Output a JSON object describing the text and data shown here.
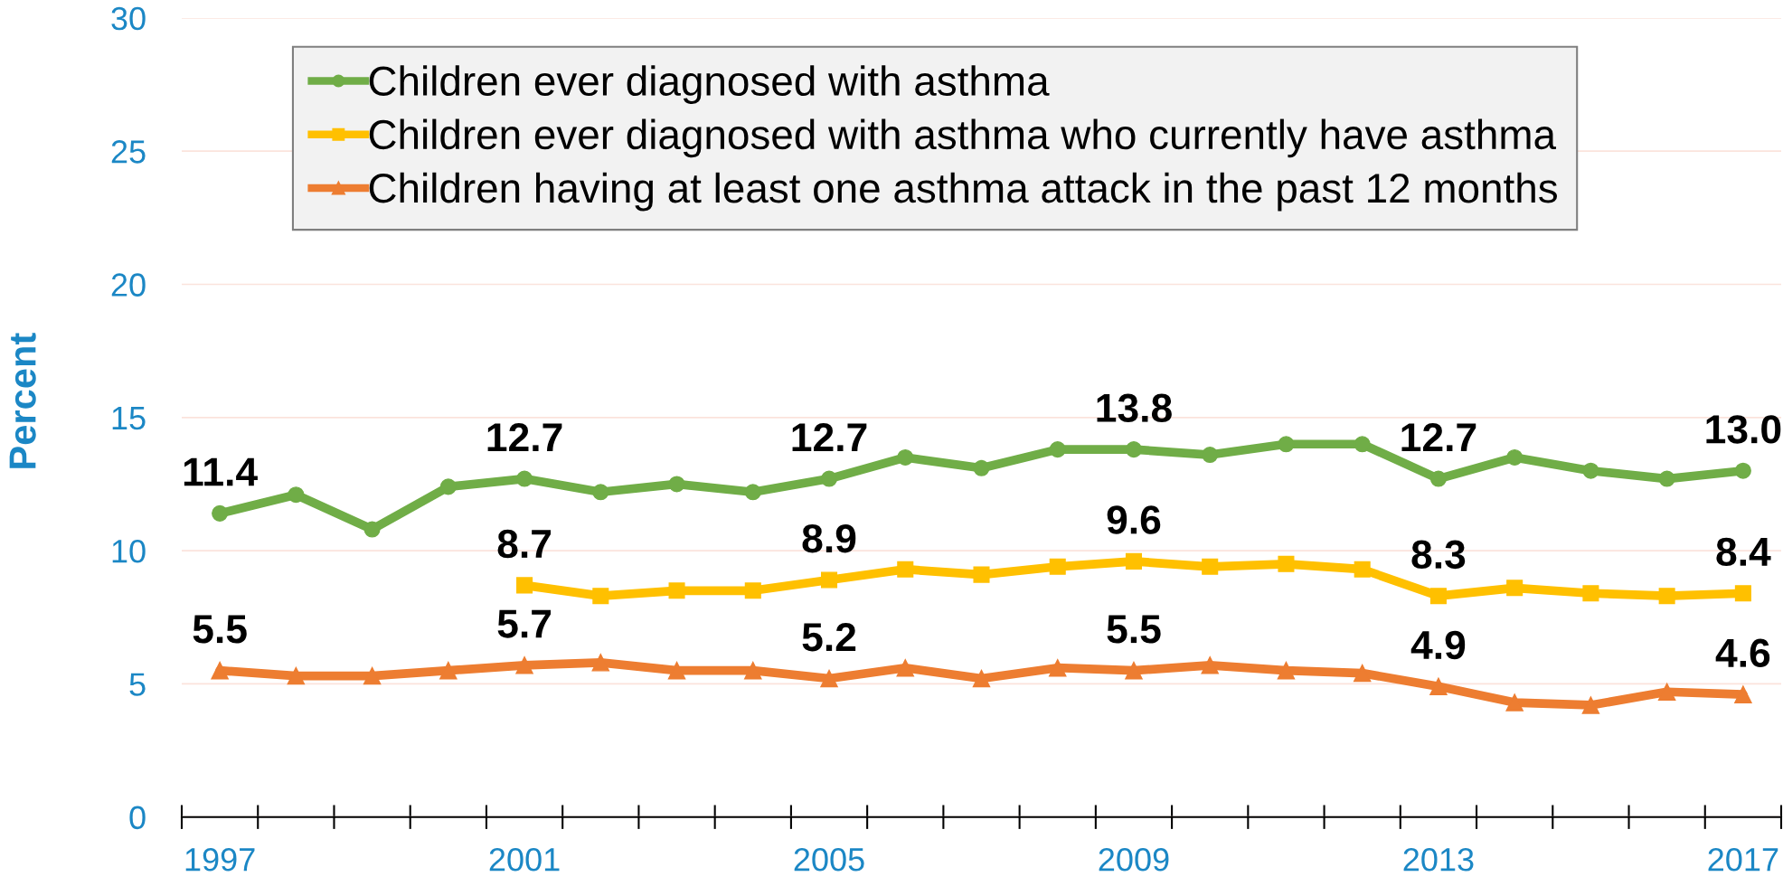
{
  "chart_data": {
    "type": "line",
    "ylabel": "Percent",
    "categories": [
      "1997",
      null,
      null,
      null,
      "2001",
      null,
      null,
      null,
      "2005",
      null,
      null,
      null,
      "2009",
      null,
      null,
      null,
      "2013",
      null,
      null,
      null,
      "2017"
    ],
    "ylim": [
      0,
      30
    ],
    "yticks": [
      0,
      5,
      10,
      15,
      20,
      25,
      30
    ],
    "grid": "y",
    "legend": "top left",
    "line_style": "solid",
    "series": [
      {
        "name": "Children ever diagnosed with asthma",
        "color": "#70ad47",
        "marker": "circle",
        "values": [
          11.4,
          12.1,
          10.8,
          12.4,
          12.7,
          12.2,
          12.5,
          12.2,
          12.7,
          13.5,
          13.1,
          13.8,
          13.8,
          13.6,
          14.0,
          14.0,
          12.7,
          13.5,
          13.0,
          12.7,
          13.0
        ],
        "value_labels": [
          "11.4",
          null,
          null,
          null,
          "12.7",
          null,
          null,
          null,
          "12.7",
          null,
          null,
          null,
          "13.8",
          null,
          null,
          null,
          "12.7",
          null,
          null,
          null,
          "13.0"
        ]
      },
      {
        "name": "Children ever diagnosed with asthma who currently have asthma",
        "color": "#ffc000",
        "marker": "square",
        "values": [
          null,
          null,
          null,
          null,
          8.7,
          8.3,
          8.5,
          8.5,
          8.9,
          9.3,
          9.1,
          9.4,
          9.6,
          9.4,
          9.5,
          9.3,
          8.3,
          8.6,
          8.4,
          8.3,
          8.4
        ],
        "value_labels": [
          null,
          null,
          null,
          null,
          "8.7",
          null,
          null,
          null,
          "8.9",
          null,
          null,
          null,
          "9.6",
          null,
          null,
          null,
          "8.3",
          null,
          null,
          null,
          "8.4"
        ]
      },
      {
        "name": "Children having at least one asthma attack in the past 12 months",
        "color": "#ed7d31",
        "marker": "triangle",
        "values": [
          5.5,
          5.3,
          5.3,
          5.5,
          5.7,
          5.8,
          5.5,
          5.5,
          5.2,
          5.6,
          5.2,
          5.6,
          5.5,
          5.7,
          5.5,
          5.4,
          4.9,
          4.3,
          4.2,
          4.7,
          4.6
        ],
        "value_labels": [
          "5.5",
          null,
          null,
          null,
          "5.7",
          null,
          null,
          null,
          "5.2",
          null,
          null,
          null,
          "5.5",
          null,
          null,
          null,
          "4.9",
          null,
          null,
          null,
          "4.6"
        ]
      }
    ]
  }
}
